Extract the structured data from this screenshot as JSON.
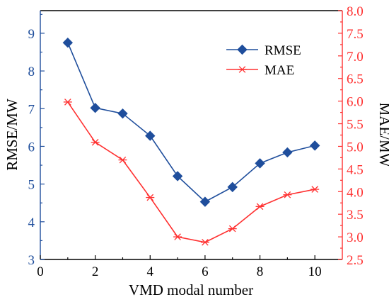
{
  "chart_data": {
    "type": "line",
    "xlabel": "VMD modal number",
    "ylabel_left": "RMSE/MW",
    "ylabel_right": "MAE/MW",
    "xlim": [
      0,
      11
    ],
    "ylim_left": [
      3,
      9.6
    ],
    "ylim_right": [
      2.5,
      8.0
    ],
    "x_ticks": [
      "0",
      "2",
      "4",
      "6",
      "8",
      "10"
    ],
    "y_left_ticks": [
      "3",
      "4",
      "5",
      "6",
      "7",
      "8",
      "9"
    ],
    "y_right_ticks": [
      "2.5",
      "3.0",
      "3.5",
      "4.0",
      "4.5",
      "5.0",
      "5.5",
      "6.0",
      "6.5",
      "7.0",
      "7.5",
      "8.0"
    ],
    "x": [
      1,
      2,
      3,
      4,
      5,
      6,
      7,
      8,
      9,
      10
    ],
    "series": [
      {
        "name": "RMSE",
        "axis": "left",
        "marker": "diamond",
        "color": "#1f4e9c",
        "values": [
          8.75,
          7.02,
          6.87,
          6.28,
          5.21,
          4.53,
          4.92,
          5.55,
          5.84,
          6.02
        ]
      },
      {
        "name": "MAE",
        "axis": "right",
        "marker": "asterisk",
        "color": "#ff3030",
        "values": [
          5.98,
          5.09,
          4.7,
          3.87,
          3.0,
          2.88,
          3.18,
          3.67,
          3.93,
          4.05
        ]
      }
    ],
    "left_axis_color": "#1f4e9c",
    "right_axis_color": "#ff3030",
    "legend_position": "top-right",
    "grid": false
  }
}
